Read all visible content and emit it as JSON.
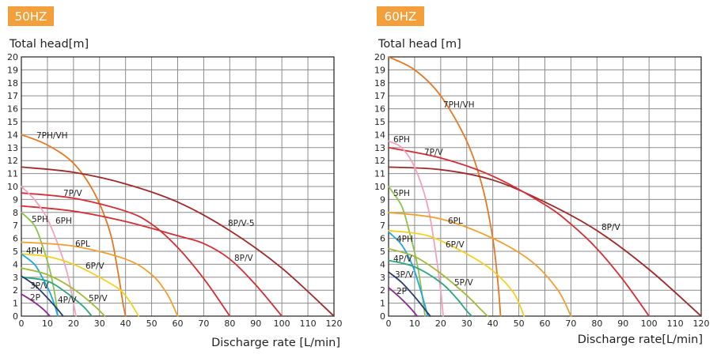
{
  "colors": {
    "badge": "#f3a03c",
    "grid": "#8c8c8c",
    "axis": "#231f20",
    "curve_palette": [
      "#e87722",
      "#9e2a2b",
      "#d42e36",
      "#f4a0c0",
      "#8bc34a",
      "#f0a030",
      "#f5d020",
      "#1ea7e0",
      "#a3b93a",
      "#2a3d6e",
      "#8b2a8f",
      "#2aa67c"
    ]
  },
  "chart_data": [
    {
      "type": "line",
      "badge": "50HZ",
      "ylabel": "Total head[m]",
      "xlabel": "Discharge rate [L/min]",
      "xlim": [
        0,
        120
      ],
      "ylim": [
        0,
        20
      ],
      "x_ticks": [
        0,
        10,
        20,
        30,
        40,
        50,
        60,
        70,
        80,
        90,
        100,
        110,
        120
      ],
      "y_ticks": [
        0,
        1,
        2,
        3,
        4,
        5,
        6,
        7,
        8,
        9,
        10,
        11,
        12,
        13,
        14,
        15,
        16,
        17,
        18,
        19,
        20
      ],
      "grid": true,
      "series": [
        {
          "name": "7PH/VH",
          "color": "#e87722",
          "x": [
            0,
            10,
            20,
            28,
            34,
            37,
            39,
            40
          ],
          "y": [
            14,
            13.2,
            11.8,
            9.5,
            6.5,
            3.5,
            1,
            0
          ],
          "label_at": [
            28,
            13.9
          ]
        },
        {
          "name": "8P/V-5",
          "color": "#9e2a2b",
          "x": [
            0,
            20,
            40,
            60,
            80,
            100,
            120
          ],
          "y": [
            11.5,
            11.1,
            10.2,
            8.8,
            6.6,
            3.7,
            0
          ],
          "label_at": [
            288,
            8.2
          ]
        },
        {
          "name": "7P/V",
          "color": "#d42e36",
          "x": [
            0,
            20,
            40,
            50,
            60,
            70,
            78,
            80
          ],
          "y": [
            9.5,
            9.1,
            8.1,
            7.1,
            5.3,
            2.9,
            0.6,
            0
          ],
          "label_at": [
            80,
            9.4
          ]
        },
        {
          "name": "8P/V",
          "color": "#d42e36",
          "x": [
            0,
            20,
            40,
            60,
            70,
            80,
            90,
            100
          ],
          "y": [
            8.5,
            8.1,
            7.3,
            6.2,
            5.6,
            4.4,
            2.4,
            0
          ],
          "label_at": [
            295,
            4.3
          ]
        },
        {
          "name": "6PH",
          "color": "#f4a0c0",
          "x": [
            0,
            5,
            10,
            15,
            18,
            20,
            21
          ],
          "y": [
            10,
            9,
            7.5,
            5,
            3,
            1,
            0
          ],
          "label_at": [
            70,
            7.3
          ]
        },
        {
          "name": "5PH",
          "color": "#8bc34a",
          "x": [
            0,
            5,
            8,
            11,
            13,
            14
          ],
          "y": [
            8,
            7,
            5.5,
            3.5,
            1.5,
            0
          ],
          "label_at": [
            40,
            7.3
          ]
        },
        {
          "name": "6PL",
          "color": "#f0a030",
          "x": [
            0,
            20,
            40,
            50,
            56,
            60
          ],
          "y": [
            5.7,
            5.4,
            4.4,
            3.2,
            1.7,
            0
          ],
          "label_at": [
            95,
            5.5
          ]
        },
        {
          "name": "6P/V",
          "color": "#f5d020",
          "x": [
            0,
            10,
            20,
            30,
            38,
            42,
            45
          ],
          "y": [
            4.8,
            4.6,
            4,
            3,
            2,
            1,
            0
          ],
          "label_at": [
            108,
            3.7
          ]
        },
        {
          "name": "4PH",
          "color": "#1ea7e0",
          "x": [
            0,
            5,
            8,
            11,
            13,
            14
          ],
          "y": [
            4.8,
            4,
            3,
            1.8,
            0.7,
            0
          ],
          "label_at": [
            33,
            4.8
          ]
        },
        {
          "name": "5P/V",
          "color": "#a3b93a",
          "x": [
            0,
            10,
            20,
            28,
            32
          ],
          "y": [
            3.7,
            3.2,
            2.1,
            0.8,
            0
          ],
          "label_at": [
            112,
            1.2
          ]
        },
        {
          "name": "4P/V",
          "color": "#2aa67c",
          "x": [
            0,
            10,
            18,
            24,
            27
          ],
          "y": [
            3,
            2.7,
            1.7,
            0.7,
            0
          ],
          "label_at": [
            73,
            1.1
          ]
        },
        {
          "name": "3P/V",
          "color": "#2a3d6e",
          "x": [
            0,
            5,
            10,
            14,
            16
          ],
          "y": [
            3.1,
            2.4,
            1.4,
            0.5,
            0
          ],
          "label_at": [
            38,
            2.2
          ]
        },
        {
          "name": "2P",
          "color": "#8b2a8f",
          "x": [
            0,
            4,
            8,
            11
          ],
          "y": [
            1.7,
            1.2,
            0.6,
            0
          ],
          "label_at": [
            38,
            1.3
          ]
        }
      ]
    },
    {
      "type": "line",
      "badge": "60HZ",
      "ylabel": "Total head [m]",
      "xlabel": "Discharge rate[L/min]",
      "xlim": [
        0,
        120
      ],
      "ylim": [
        0,
        20
      ],
      "x_ticks": [
        0,
        10,
        20,
        30,
        40,
        50,
        60,
        70,
        80,
        90,
        100,
        110,
        120
      ],
      "y_ticks": [
        0,
        1,
        2,
        3,
        4,
        5,
        6,
        7,
        8,
        9,
        10,
        11,
        12,
        13,
        14,
        15,
        16,
        17,
        18,
        19,
        20
      ],
      "grid": true,
      "series": [
        {
          "name": "7PH/VH",
          "color": "#e87722",
          "x": [
            0,
            10,
            20,
            30,
            36,
            40,
            42,
            43
          ],
          "y": [
            20,
            19,
            17,
            13.5,
            10,
            6,
            2.5,
            0
          ],
          "label_at": [
            558,
            16.1
          ]
        },
        {
          "name": "8P/V",
          "color": "#9e2a2b",
          "x": [
            0,
            20,
            40,
            60,
            80,
            100,
            120
          ],
          "y": [
            11.5,
            11.3,
            10.5,
            8.8,
            6.6,
            3.6,
            0
          ],
          "label_at": [
            760,
            6.4
          ]
        },
        {
          "name": "7P/V",
          "color": "#d42e36",
          "x": [
            0,
            20,
            40,
            60,
            70,
            80,
            90,
            100
          ],
          "y": [
            13,
            12.2,
            10.8,
            8.6,
            7.1,
            5.2,
            2.8,
            0
          ],
          "label_at": [
            536,
            12.3
          ]
        },
        {
          "name": "6PH",
          "color": "#f4a0c0",
          "x": [
            0,
            5,
            10,
            15,
            18,
            20,
            21
          ],
          "y": [
            13.5,
            13,
            11.5,
            8.5,
            5,
            2,
            0
          ],
          "label_at": [
            497,
            13.3
          ]
        },
        {
          "name": "5PH",
          "color": "#8bc34a",
          "x": [
            0,
            5,
            8,
            11,
            13,
            14
          ],
          "y": [
            10,
            8.5,
            6.5,
            4,
            1.5,
            0
          ],
          "label_at": [
            497,
            9.2
          ]
        },
        {
          "name": "6PL",
          "color": "#f0a030",
          "x": [
            0,
            20,
            40,
            55,
            65,
            70
          ],
          "y": [
            8,
            7.5,
            6,
            4.2,
            2,
            0
          ],
          "label_at": [
            566,
            7.1
          ]
        },
        {
          "name": "6P/V",
          "color": "#f5d020",
          "x": [
            0,
            15,
            30,
            40,
            48,
            52
          ],
          "y": [
            6.6,
            6.2,
            4.8,
            3.5,
            1.8,
            0
          ],
          "label_at": [
            563,
            5.4
          ]
        },
        {
          "name": "4PH",
          "color": "#1ea7e0",
          "x": [
            0,
            5,
            9,
            12,
            14,
            15
          ],
          "y": [
            6.5,
            5.5,
            4,
            2.2,
            0.8,
            0
          ],
          "label_at": [
            501,
            5.8
          ]
        },
        {
          "name": "5P/V",
          "color": "#a3b93a",
          "x": [
            0,
            10,
            20,
            30,
            35,
            38
          ],
          "y": [
            5.2,
            4.6,
            3.3,
            1.6,
            0.6,
            0
          ],
          "label_at": [
            574,
            2.4
          ]
        },
        {
          "name": "4P/V",
          "color": "#2aa67c",
          "x": [
            0,
            10,
            20,
            26,
            30,
            32
          ],
          "y": [
            4.3,
            3.8,
            2.6,
            1.4,
            0.4,
            0
          ],
          "label_at": [
            497,
            4.2
          ]
        },
        {
          "name": "3P/V",
          "color": "#2a3d6e",
          "x": [
            0,
            5,
            10,
            14,
            16
          ],
          "y": [
            3.4,
            2.6,
            1.5,
            0.5,
            0
          ],
          "label_at": [
            499,
            3.2
          ]
        },
        {
          "name": "2P",
          "color": "#8b2a8f",
          "x": [
            0,
            4,
            8,
            11
          ],
          "y": [
            2.2,
            1.5,
            0.7,
            0
          ],
          "label_at": [
            501,
            2.0
          ]
        }
      ]
    }
  ]
}
